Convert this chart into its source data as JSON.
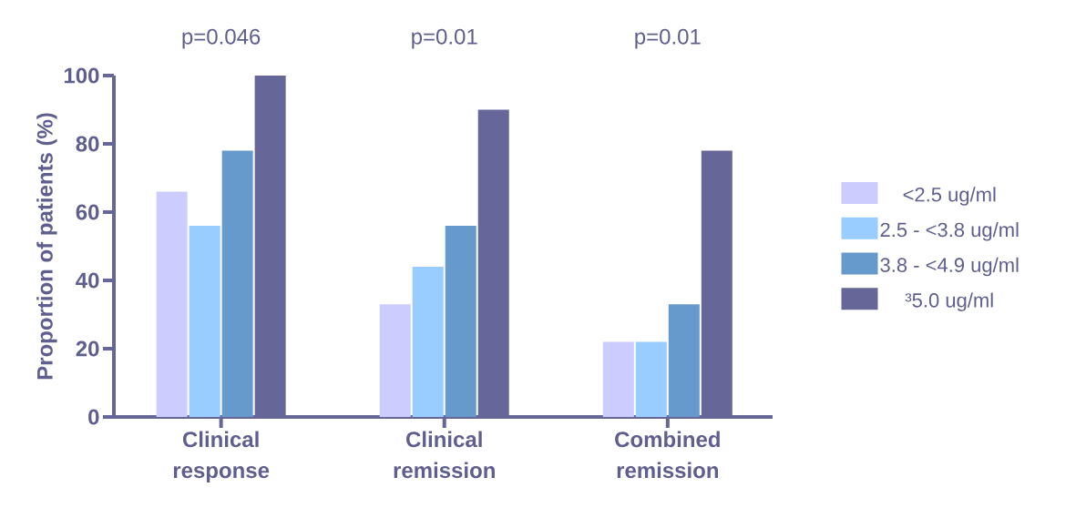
{
  "chart_data": {
    "type": "bar",
    "ylabel": "Proportion of patients (%)",
    "categories": [
      "Clinical response",
      "Clinical remission",
      "Combined remission"
    ],
    "series": [
      {
        "name": "<2.5 ug/ml",
        "color": "#ccccff",
        "values": [
          66,
          33,
          22
        ]
      },
      {
        "name": "2.5 - <3.8 ug/ml",
        "color": "#99ccff",
        "values": [
          56,
          44,
          22
        ]
      },
      {
        "name": "3.8 - <4.9 ug/ml",
        "color": "#6699cc",
        "values": [
          78,
          56,
          33
        ]
      },
      {
        "name": "³5.0 ug/ml",
        "color": "#666699",
        "values": [
          100,
          90,
          78
        ]
      }
    ],
    "ylim": [
      0,
      100
    ],
    "yticks": [
      0,
      20,
      40,
      60,
      80,
      100
    ],
    "grid": false,
    "legend": "right",
    "annotations": [
      "p=0.046",
      "p=0.01",
      "p=0.01"
    ]
  }
}
